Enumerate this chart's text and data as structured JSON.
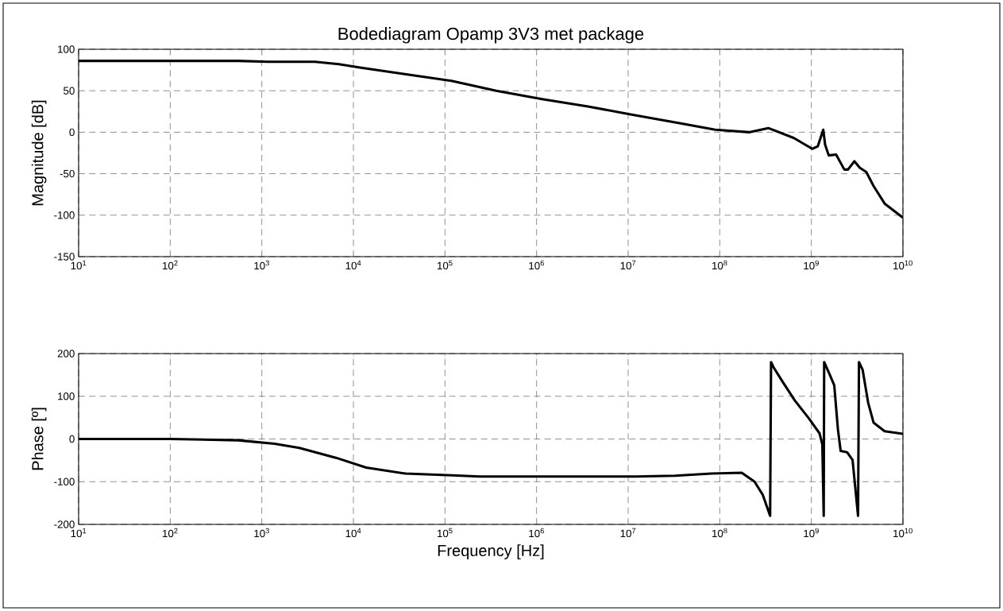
{
  "chart_data": [
    {
      "type": "line",
      "title": "Bodediagram Opamp 3V3 met package",
      "ylabel": "Magnitude [dB]",
      "log": "x",
      "grid": true,
      "marker": "none",
      "line_style": "solid",
      "xlim": [
        10,
        10000000000.0
      ],
      "ylim": [
        -150,
        100
      ],
      "xticks": [
        {
          "value": 10,
          "label": "10$^{1}$"
        },
        {
          "value": 100,
          "label": "10$^{2}$"
        },
        {
          "value": 1000,
          "label": "10$^{3}$"
        },
        {
          "value": 10000.0,
          "label": "10$^{4}$"
        },
        {
          "value": 100000.0,
          "label": "10$^{5}$"
        },
        {
          "value": 1000000.0,
          "label": "10$^{6}$"
        },
        {
          "value": 10000000.0,
          "label": "10$^{7}$"
        },
        {
          "value": 100000000.0,
          "label": "10$^{8}$"
        },
        {
          "value": 1000000000.0,
          "label": "10$^{9}$"
        },
        {
          "value": 10000000000.0,
          "label": "10$^{10}$"
        }
      ],
      "yticks": [
        -150,
        -100,
        -50,
        0,
        50,
        100
      ],
      "series": [
        {
          "color": "#000000",
          "x": [
            10,
            100,
            549.5,
            1175,
            3802,
            6918,
            11750,
            36310,
            117500,
            363100,
            1148000.0,
            3631000.0,
            11220000.0,
            36310000.0,
            89130000.0,
            208900000.0,
            338800000.0,
            645700000.0,
            1023000000.0,
            1175000000.0,
            1349000000.0,
            1413000000.0,
            1549000000.0,
            1862000000.0,
            2291000000.0,
            2512000000.0,
            2951000000.0,
            3388000000.0,
            3981000000.0,
            4786000000.0,
            6310000000.0,
            10000000000.0
          ],
          "values": [
            86,
            86,
            86,
            85,
            85,
            82,
            78,
            70,
            62,
            50,
            40,
            31,
            21,
            11,
            3,
            0,
            5,
            -7,
            -20,
            -17,
            3,
            -15,
            -28,
            -27,
            -45,
            -45,
            -35,
            -43,
            -48,
            -65,
            -86,
            -103
          ]
        }
      ]
    },
    {
      "type": "line",
      "xlabel": "Frequency [Hz]",
      "ylabel": "Phase [º]",
      "log": "x",
      "grid": true,
      "marker": "none",
      "line_style": "solid",
      "xlim": [
        10,
        10000000000.0
      ],
      "ylim": [
        -200,
        200
      ],
      "xticks": [
        {
          "value": 10,
          "label": "10$^{1}$"
        },
        {
          "value": 100,
          "label": "10$^{2}$"
        },
        {
          "value": 1000,
          "label": "10$^{3}$"
        },
        {
          "value": 10000.0,
          "label": "10$^{4}$"
        },
        {
          "value": 100000.0,
          "label": "10$^{5}$"
        },
        {
          "value": 1000000.0,
          "label": "10$^{6}$"
        },
        {
          "value": 10000000.0,
          "label": "10$^{7}$"
        },
        {
          "value": 100000000.0,
          "label": "10$^{8}$"
        },
        {
          "value": 1000000000.0,
          "label": "10$^{9}$"
        },
        {
          "value": 10000000000.0,
          "label": "10$^{10}$"
        }
      ],
      "yticks": [
        -200,
        -100,
        0,
        100,
        200
      ],
      "series": [
        {
          "color": "#000000",
          "x": [
            10,
            100,
            549.5,
            1380,
            2570,
            6457,
            13800,
            37150,
            120200,
            239900,
            12020000.0,
            32360000.0,
            81280000.0,
            173800000.0,
            239900000.0,
            295100000.0,
            354800000.0,
            363100000.0,
            389000000.0,
            478600000.0,
            660700000.0,
            933300000.0,
            1230000000.0,
            1318000000.0,
            1365000000.0,
            1380000000.0,
            1549000000.0,
            1778000000.0,
            1950000000.0,
            2089000000.0,
            2455000000.0,
            2818000000.0,
            3236000000.0,
            3311000000.0,
            3631000000.0,
            4169000000.0,
            4786000000.0,
            6310000000.0,
            10000000000.0
          ],
          "values": [
            0,
            0,
            -3,
            -11,
            -21,
            -44,
            -67,
            -81,
            -85,
            -88,
            -88,
            -86,
            -81,
            -79,
            -100,
            -131,
            -180,
            180,
            167,
            136,
            90,
            49,
            13,
            -13,
            -180,
            180,
            156,
            126,
            23,
            -28,
            -31,
            -49,
            -180,
            180,
            162,
            85,
            38,
            18,
            12
          ]
        }
      ]
    }
  ]
}
